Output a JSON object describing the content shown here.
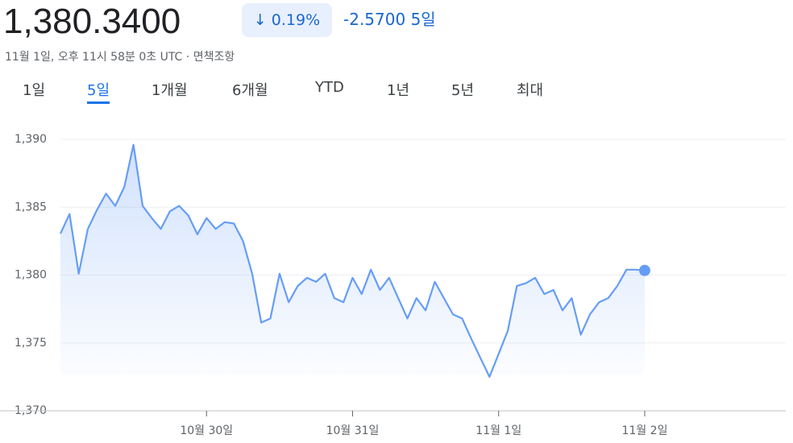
{
  "header": {
    "price": "1,380.3400",
    "change_percent": "0.19%",
    "change": "-2.5700",
    "period": "5일",
    "timestamp": "11월 1일, 오후 11시 58분 0초 UTC",
    "separator": "·",
    "disclaimer": "면책조항"
  },
  "tabs": [
    "1일",
    "5일",
    "1개월",
    "6개월",
    "YTD",
    "1년",
    "5년",
    "최대"
  ],
  "selected_tab": 1,
  "chart_data": {
    "type": "line",
    "categories": [
      null,
      null,
      null,
      null,
      null,
      null,
      null,
      null,
      null,
      null,
      null,
      null,
      null,
      null,
      null,
      null,
      "10월 30일",
      null,
      null,
      null,
      null,
      null,
      null,
      null,
      null,
      null,
      null,
      null,
      null,
      null,
      null,
      null,
      "10월 31일",
      null,
      null,
      null,
      null,
      null,
      null,
      null,
      null,
      null,
      null,
      null,
      null,
      null,
      null,
      null,
      "11월 1일",
      null,
      null,
      null,
      null,
      null,
      null,
      null,
      null,
      null,
      null,
      null,
      null,
      null,
      null,
      null,
      "11월 2일"
    ],
    "series": [
      {
        "name": "1,380.3400",
        "color": "#669df6",
        "values": [
          1383.05,
          1384.5,
          1380.1,
          1383.4,
          1384.8,
          1386.0,
          1385.1,
          1386.5,
          1389.6,
          1385.1,
          1384.2,
          1383.4,
          1384.7,
          1385.1,
          1384.4,
          1383.0,
          1384.2,
          1383.4,
          1383.9,
          1383.8,
          1382.5,
          1380.1,
          1376.5,
          1376.8,
          1380.1,
          1378.0,
          1379.2,
          1379.8,
          1379.5,
          1380.1,
          1378.3,
          1378.0,
          1379.8,
          1378.6,
          1380.4,
          1378.9,
          1379.8,
          1378.3,
          1376.8,
          1378.3,
          1377.4,
          1379.5,
          1378.3,
          1377.1,
          1376.8,
          1375.3,
          1373.9,
          1372.5,
          1374.2,
          1375.9,
          1379.2,
          1379.4,
          1379.8,
          1378.6,
          1378.9,
          1377.4,
          1378.3,
          1375.6,
          1377.1,
          1378.0,
          1378.3,
          1379.2,
          1380.4,
          1380.4,
          1380.34
        ]
      }
    ],
    "ylim": [
      1370,
      1390
    ],
    "yticks": [
      {
        "value": 1370,
        "label": "1,370"
      },
      {
        "value": 1375,
        "label": "1,375"
      },
      {
        "value": 1380,
        "label": "1,380"
      },
      {
        "value": 1385,
        "label": "1,385"
      },
      {
        "value": 1390,
        "label": "1,390"
      }
    ],
    "grid": true
  }
}
